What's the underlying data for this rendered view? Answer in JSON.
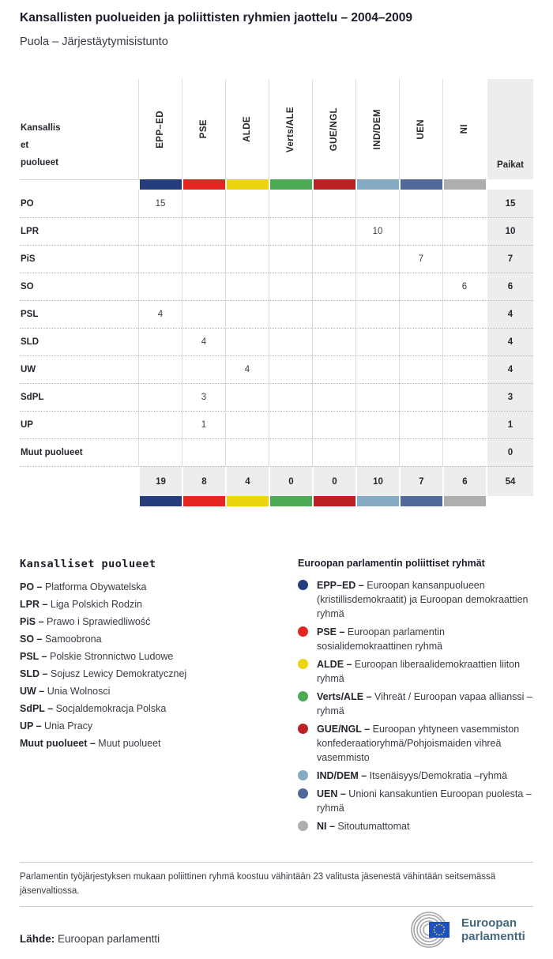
{
  "title": "Kansallisten puolueiden ja poliittisten ryhmien jaottelu – 2004–2009",
  "subtitle": "Puola – Järjestäytymisistunto",
  "table": {
    "row_header_lines": [
      "Kansallis",
      "et",
      "puolueet"
    ],
    "seats_header": "Paikat",
    "groups": [
      {
        "id": "EPP–ED",
        "color": "#253c7d"
      },
      {
        "id": "PSE",
        "color": "#e52521"
      },
      {
        "id": "ALDE",
        "color": "#ecd50e"
      },
      {
        "id": "Verts/ALE",
        "color": "#4caa55"
      },
      {
        "id": "GUE/NGL",
        "color": "#bb2024"
      },
      {
        "id": "IND/DEM",
        "color": "#85abc4"
      },
      {
        "id": "UEN",
        "color": "#50689a"
      },
      {
        "id": "NI",
        "color": "#aeaeae"
      }
    ],
    "rows": [
      {
        "label": "PO",
        "values": [
          15,
          null,
          null,
          null,
          null,
          null,
          null,
          null
        ],
        "seats": 15
      },
      {
        "label": "LPR",
        "values": [
          null,
          null,
          null,
          null,
          null,
          10,
          null,
          null
        ],
        "seats": 10
      },
      {
        "label": "PiS",
        "values": [
          null,
          null,
          null,
          null,
          null,
          null,
          7,
          null
        ],
        "seats": 7
      },
      {
        "label": "SO",
        "values": [
          null,
          null,
          null,
          null,
          null,
          null,
          null,
          6
        ],
        "seats": 6
      },
      {
        "label": "PSL",
        "values": [
          4,
          null,
          null,
          null,
          null,
          null,
          null,
          null
        ],
        "seats": 4
      },
      {
        "label": "SLD",
        "values": [
          null,
          4,
          null,
          null,
          null,
          null,
          null,
          null
        ],
        "seats": 4
      },
      {
        "label": "UW",
        "values": [
          null,
          null,
          4,
          null,
          null,
          null,
          null,
          null
        ],
        "seats": 4
      },
      {
        "label": "SdPL",
        "values": [
          null,
          3,
          null,
          null,
          null,
          null,
          null,
          null
        ],
        "seats": 3
      },
      {
        "label": "UP",
        "values": [
          null,
          1,
          null,
          null,
          null,
          null,
          null,
          null
        ],
        "seats": 1
      },
      {
        "label": "Muut puolueet",
        "values": [
          null,
          null,
          null,
          null,
          null,
          null,
          null,
          null
        ],
        "seats": 0
      }
    ],
    "totals": {
      "values": [
        19,
        8,
        4,
        0,
        0,
        10,
        7,
        6
      ],
      "seats": 54
    }
  },
  "legend_parties": {
    "heading": "Kansalliset puolueet",
    "items": [
      {
        "abbr": "PO –",
        "name": "Platforma Obywatelska"
      },
      {
        "abbr": "LPR –",
        "name": "Liga Polskich Rodzin"
      },
      {
        "abbr": "PiS –",
        "name": "Prawo i Sprawiedliwość"
      },
      {
        "abbr": "SO –",
        "name": "Samoobrona"
      },
      {
        "abbr": "PSL –",
        "name": "Polskie Stronnictwo Ludowe"
      },
      {
        "abbr": "SLD –",
        "name": "Sojusz Lewicy Demokratycznej"
      },
      {
        "abbr": "UW –",
        "name": "Unia Wolnosci"
      },
      {
        "abbr": "SdPL –",
        "name": "Socjaldemokracja Polska"
      },
      {
        "abbr": "UP –",
        "name": "Unia Pracy"
      },
      {
        "abbr": "Muut puolueet –",
        "name": "Muut puolueet"
      }
    ]
  },
  "legend_groups": {
    "heading": "Euroopan parlamentin poliittiset ryhmät",
    "items": [
      {
        "abbr": "EPP–ED –",
        "name": "Euroopan kansanpuolueen (kristillisdemokraatit) ja Euroopan demokraattien ryhmä",
        "color": "#253c7d"
      },
      {
        "abbr": "PSE –",
        "name": "Euroopan parlamentin sosialidemokraattinen ryhmä",
        "color": "#e52521"
      },
      {
        "abbr": "ALDE –",
        "name": "Euroopan liberaalidemokraattien liiton ryhmä",
        "color": "#ecd50e"
      },
      {
        "abbr": "Verts/ALE –",
        "name": "Vihreät / Euroopan vapaa allianssi – ryhmä",
        "color": "#4caa55"
      },
      {
        "abbr": "GUE/NGL –",
        "name": "Euroopan yhtyneen vasemmiston konfederaatioryhmä/Pohjoismaiden vihreä vasemmisto",
        "color": "#bb2024"
      },
      {
        "abbr": "IND/DEM –",
        "name": "Itsenäisyys/Demokratia –ryhmä",
        "color": "#85abc4"
      },
      {
        "abbr": "UEN –",
        "name": "Unioni kansakuntien Euroopan puolesta – ryhmä",
        "color": "#50689a"
      },
      {
        "abbr": "NI –",
        "name": "Sitoutumattomat",
        "color": "#aeaeae"
      }
    ]
  },
  "footnote": "Parlamentin työjärjestyksen mukaan poliittinen ryhmä koostuu vähintään 23 valitusta jäsenestä vähintään seitsemässä jäsenvaltiossa.",
  "source": {
    "label": "Lähde:",
    "text": "Euroopan parlamentti"
  },
  "logo": {
    "line1": "Euroopan",
    "line2": "parlamentti",
    "flag_color": "#1d50c0",
    "star_color": "#ffd617",
    "arc_color": "#a6a6a6",
    "text_color": "#44687f"
  },
  "chart_data": {
    "type": "table",
    "title": "Kansallisten puolueiden ja poliittisten ryhmien jaottelu – 2004–2009",
    "subtitle": "Puola – Järjestäytymisistunto",
    "columns": [
      "EPP–ED",
      "PSE",
      "ALDE",
      "Verts/ALE",
      "GUE/NGL",
      "IND/DEM",
      "UEN",
      "NI",
      "Paikat"
    ],
    "rows": [
      {
        "party": "PO",
        "seats_by_group": [
          15,
          null,
          null,
          null,
          null,
          null,
          null,
          null
        ],
        "total": 15
      },
      {
        "party": "LPR",
        "seats_by_group": [
          null,
          null,
          null,
          null,
          null,
          10,
          null,
          null
        ],
        "total": 10
      },
      {
        "party": "PiS",
        "seats_by_group": [
          null,
          null,
          null,
          null,
          null,
          null,
          7,
          null
        ],
        "total": 7
      },
      {
        "party": "SO",
        "seats_by_group": [
          null,
          null,
          null,
          null,
          null,
          null,
          null,
          6
        ],
        "total": 6
      },
      {
        "party": "PSL",
        "seats_by_group": [
          4,
          null,
          null,
          null,
          null,
          null,
          null,
          null
        ],
        "total": 4
      },
      {
        "party": "SLD",
        "seats_by_group": [
          null,
          4,
          null,
          null,
          null,
          null,
          null,
          null
        ],
        "total": 4
      },
      {
        "party": "UW",
        "seats_by_group": [
          null,
          null,
          4,
          null,
          null,
          null,
          null,
          null
        ],
        "total": 4
      },
      {
        "party": "SdPL",
        "seats_by_group": [
          null,
          3,
          null,
          null,
          null,
          null,
          null,
          null
        ],
        "total": 3
      },
      {
        "party": "UP",
        "seats_by_group": [
          null,
          1,
          null,
          null,
          null,
          null,
          null,
          null
        ],
        "total": 1
      },
      {
        "party": "Muut puolueet",
        "seats_by_group": [
          null,
          null,
          null,
          null,
          null,
          null,
          null,
          null
        ],
        "total": 0
      }
    ],
    "column_totals": [
      19,
      8,
      4,
      0,
      0,
      10,
      7,
      6
    ],
    "grand_total": 54
  }
}
